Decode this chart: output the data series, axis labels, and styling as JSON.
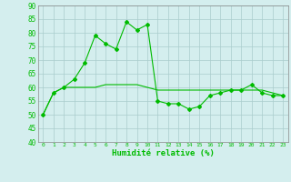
{
  "x": [
    0,
    1,
    2,
    3,
    4,
    5,
    6,
    7,
    8,
    9,
    10,
    11,
    12,
    13,
    14,
    15,
    16,
    17,
    18,
    19,
    20,
    21,
    22,
    23
  ],
  "y_main": [
    50,
    58,
    60,
    63,
    69,
    79,
    76,
    74,
    84,
    81,
    83,
    55,
    54,
    54,
    52,
    53,
    57,
    58,
    59,
    59,
    61,
    58,
    57,
    57
  ],
  "y_smooth": [
    50,
    58,
    60,
    60,
    60,
    60,
    61,
    61,
    61,
    61,
    60,
    59,
    59,
    59,
    59,
    59,
    59,
    59,
    59,
    59,
    59,
    59,
    58,
    57
  ],
  "line_color": "#00bb00",
  "bg_color": "#d4eeee",
  "grid_color": "#aacccc",
  "ylim": [
    40,
    90
  ],
  "yticks": [
    40,
    45,
    50,
    55,
    60,
    65,
    70,
    75,
    80,
    85,
    90
  ],
  "xlabel": "Humidité relative (%)",
  "xlabel_color": "#00bb00",
  "marker": "D",
  "marker_size": 2
}
